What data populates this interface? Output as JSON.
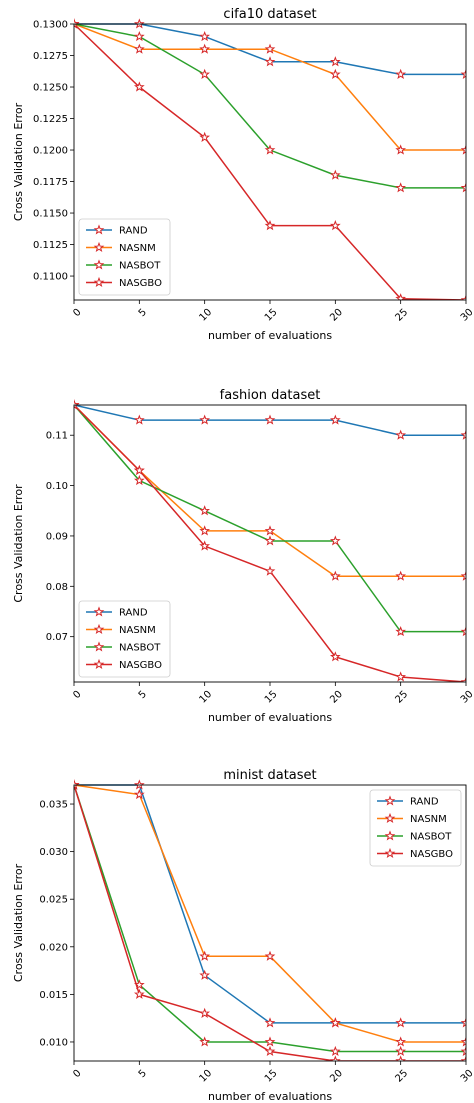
{
  "colors": {
    "RAND": "#1f77b4",
    "NASNM": "#ff7f0e",
    "NASBOT": "#2ca02c",
    "NASGBO": "#d62728",
    "marker": "#d62728"
  },
  "marker": "star",
  "chart_data": [
    {
      "type": "line",
      "title": "cifa10 dataset",
      "xlabel": "number of evaluations",
      "ylabel": "Cross Validation Error",
      "x": [
        0,
        5,
        10,
        15,
        20,
        25,
        30
      ],
      "xticks": [
        "0",
        "5",
        "10",
        "15",
        "20",
        "25",
        "30"
      ],
      "xlim": [
        0,
        30
      ],
      "ylim": [
        0.1081,
        0.13
      ],
      "yticks": [
        "0.1100",
        "0.1125",
        "0.1150",
        "0.1175",
        "0.1200",
        "0.1225",
        "0.1250",
        "0.1275",
        "0.1300"
      ],
      "grid": false,
      "legend_position": "lower-left",
      "series": [
        {
          "name": "RAND",
          "values": [
            0.13,
            0.13,
            0.129,
            0.127,
            0.127,
            0.126,
            0.126
          ]
        },
        {
          "name": "NASNM",
          "values": [
            0.13,
            0.128,
            0.128,
            0.128,
            0.126,
            0.12,
            0.12
          ]
        },
        {
          "name": "NASBOT",
          "values": [
            0.13,
            0.129,
            0.126,
            0.12,
            0.118,
            0.117,
            0.117
          ]
        },
        {
          "name": "NASGBO",
          "values": [
            0.13,
            0.125,
            0.121,
            0.114,
            0.114,
            0.1082,
            0.1081
          ]
        }
      ]
    },
    {
      "type": "line",
      "title": "fashion dataset",
      "xlabel": "number of evaluations",
      "ylabel": "Cross Validation Error",
      "x": [
        0,
        5,
        10,
        15,
        20,
        25,
        30
      ],
      "xticks": [
        "0",
        "5",
        "10",
        "15",
        "20",
        "25",
        "30"
      ],
      "xlim": [
        0,
        30
      ],
      "ylim": [
        0.061,
        0.116
      ],
      "yticks": [
        "0.07",
        "0.08",
        "0.09",
        "0.10",
        "0.11"
      ],
      "grid": false,
      "legend_position": "lower-left",
      "series": [
        {
          "name": "RAND",
          "values": [
            0.116,
            0.113,
            0.113,
            0.113,
            0.113,
            0.11,
            0.11
          ]
        },
        {
          "name": "NASNM",
          "values": [
            0.116,
            0.103,
            0.091,
            0.091,
            0.082,
            0.082,
            0.082
          ]
        },
        {
          "name": "NASBOT",
          "values": [
            0.116,
            0.101,
            0.095,
            0.089,
            0.089,
            0.071,
            0.071
          ]
        },
        {
          "name": "NASGBO",
          "values": [
            0.116,
            0.103,
            0.088,
            0.083,
            0.066,
            0.062,
            0.061
          ]
        }
      ]
    },
    {
      "type": "line",
      "title": "minist dataset",
      "xlabel": "number of evaluations",
      "ylabel": "Cross Validation Error",
      "x": [
        0,
        5,
        10,
        15,
        20,
        25,
        30
      ],
      "xticks": [
        "0",
        "5",
        "10",
        "15",
        "20",
        "25",
        "30"
      ],
      "xlim": [
        0,
        30
      ],
      "ylim": [
        0.008,
        0.037
      ],
      "yticks": [
        "0.010",
        "0.015",
        "0.020",
        "0.025",
        "0.030",
        "0.035"
      ],
      "grid": false,
      "legend_position": "upper-right",
      "series": [
        {
          "name": "RAND",
          "values": [
            0.037,
            0.037,
            0.017,
            0.012,
            0.012,
            0.012,
            0.012
          ]
        },
        {
          "name": "NASNM",
          "values": [
            0.037,
            0.036,
            0.019,
            0.019,
            0.012,
            0.01,
            0.01
          ]
        },
        {
          "name": "NASBOT",
          "values": [
            0.037,
            0.016,
            0.01,
            0.01,
            0.009,
            0.009,
            0.009
          ]
        },
        {
          "name": "NASGBO",
          "values": [
            0.037,
            0.015,
            0.013,
            0.009,
            0.008,
            0.008,
            0.008
          ]
        }
      ]
    }
  ]
}
